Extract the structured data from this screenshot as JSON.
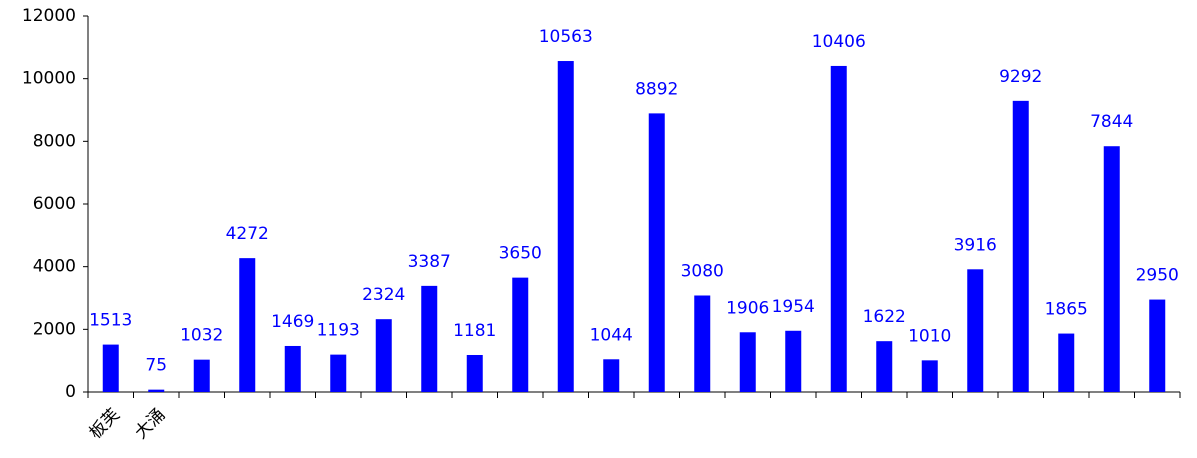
{
  "chart_data": {
    "type": "bar",
    "categories": [
      "板芙",
      "大涌",
      null,
      null,
      null,
      null,
      null,
      null,
      null,
      null,
      null,
      null,
      null,
      null,
      null,
      null,
      null,
      null,
      null,
      null,
      null,
      null,
      null,
      null
    ],
    "values": [
      1513,
      75,
      1032,
      4272,
      1469,
      1193,
      2324,
      3387,
      1181,
      3650,
      10563,
      1044,
      8892,
      3080,
      1906,
      1954,
      10406,
      1622,
      1010,
      3916,
      9292,
      1865,
      7844,
      2950
    ],
    "color": "#0000ff",
    "ylim": [
      0,
      12000
    ],
    "yticks": [
      0,
      2000,
      4000,
      6000,
      8000,
      10000,
      12000
    ],
    "grid": false
  }
}
